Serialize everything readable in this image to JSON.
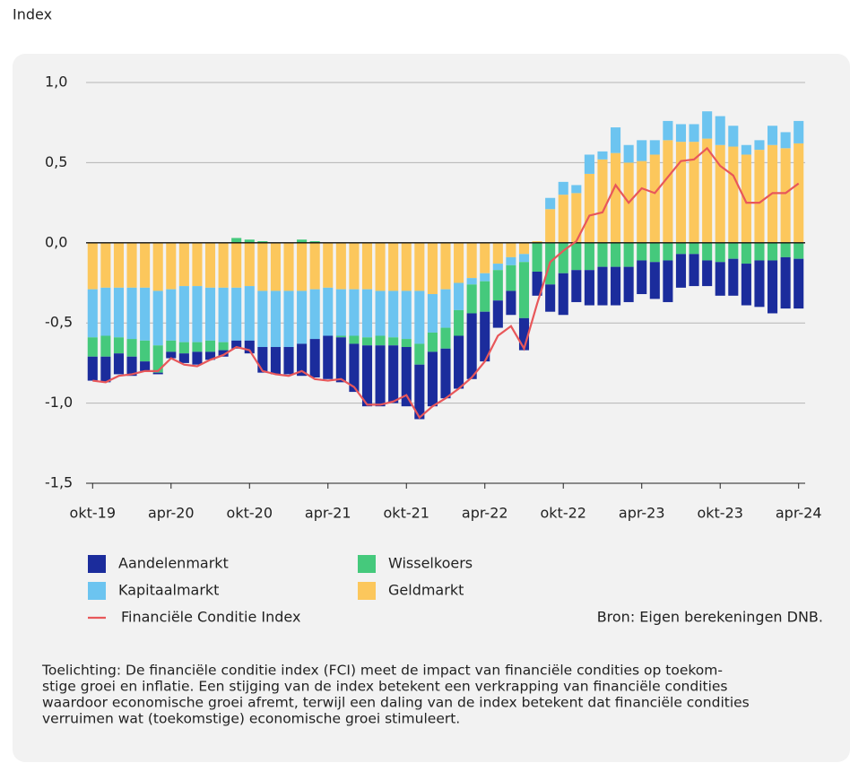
{
  "chart_data": {
    "type": "bar",
    "y_label": "Index",
    "categories": [
      "okt-19",
      null,
      null,
      null,
      null,
      null,
      "apr-20",
      null,
      null,
      null,
      null,
      null,
      "okt-20",
      null,
      null,
      null,
      null,
      null,
      "apr-21",
      null,
      null,
      null,
      null,
      null,
      "okt-21",
      null,
      null,
      null,
      null,
      null,
      "apr-22",
      null,
      null,
      null,
      null,
      null,
      "okt-22",
      null,
      null,
      null,
      null,
      null,
      "apr-23",
      null,
      null,
      null,
      null,
      null,
      "okt-23",
      null,
      null,
      null,
      null,
      null,
      "apr-24"
    ],
    "series": [
      {
        "name": "Aandelenmarkt",
        "color": "#1b2c9c",
        "values": [
          -0.15,
          -0.16,
          -0.13,
          -0.12,
          -0.06,
          -0.01,
          -0.04,
          -0.06,
          -0.08,
          -0.05,
          -0.04,
          -0.05,
          -0.08,
          -0.16,
          -0.17,
          -0.17,
          -0.2,
          -0.24,
          -0.27,
          -0.28,
          -0.3,
          -0.38,
          -0.38,
          -0.36,
          -0.37,
          -0.34,
          -0.34,
          -0.31,
          -0.33,
          -0.41,
          -0.31,
          -0.17,
          -0.15,
          -0.2,
          -0.15,
          -0.17,
          -0.26,
          -0.2,
          -0.22,
          -0.24,
          -0.24,
          -0.22,
          -0.21,
          -0.23,
          -0.26,
          -0.21,
          -0.2,
          -0.16,
          -0.21,
          -0.23,
          -0.26,
          -0.29,
          -0.33,
          -0.32,
          -0.31
        ]
      },
      {
        "name": "Wisselkoers",
        "color": "#45c97c",
        "values": [
          -0.12,
          -0.13,
          -0.1,
          -0.11,
          -0.13,
          -0.17,
          -0.07,
          -0.07,
          -0.06,
          -0.07,
          -0.05,
          0.03,
          0.02,
          0.01,
          0.0,
          0.0,
          0.02,
          0.01,
          0.0,
          -0.01,
          -0.05,
          -0.05,
          -0.06,
          -0.05,
          -0.05,
          -0.13,
          -0.12,
          -0.13,
          -0.16,
          -0.18,
          -0.19,
          -0.19,
          -0.16,
          -0.35,
          -0.18,
          -0.26,
          -0.19,
          -0.17,
          -0.17,
          -0.15,
          -0.15,
          -0.15,
          -0.11,
          -0.12,
          -0.11,
          -0.07,
          -0.07,
          -0.11,
          -0.12,
          -0.1,
          -0.13,
          -0.11,
          -0.11,
          -0.09,
          -0.1
        ]
      },
      {
        "name": "Kapitaalmarkt",
        "color": "#6cc4f0",
        "values": [
          -0.3,
          -0.3,
          -0.31,
          -0.32,
          -0.33,
          -0.34,
          -0.32,
          -0.35,
          -0.35,
          -0.33,
          -0.34,
          -0.33,
          -0.34,
          -0.35,
          -0.35,
          -0.35,
          -0.33,
          -0.31,
          -0.3,
          -0.29,
          -0.29,
          -0.3,
          -0.28,
          -0.29,
          -0.3,
          -0.33,
          -0.24,
          -0.24,
          -0.17,
          -0.04,
          -0.05,
          -0.04,
          -0.05,
          -0.05,
          0.0,
          0.07,
          0.08,
          0.05,
          0.12,
          0.05,
          0.16,
          0.11,
          0.13,
          0.09,
          0.12,
          0.11,
          0.11,
          0.17,
          0.18,
          0.13,
          0.06,
          0.06,
          0.12,
          0.1,
          0.14
        ]
      },
      {
        "name": "Geldmarkt",
        "color": "#fcc75c",
        "values": [
          -0.29,
          -0.28,
          -0.28,
          -0.28,
          -0.28,
          -0.3,
          -0.29,
          -0.27,
          -0.27,
          -0.28,
          -0.28,
          -0.28,
          -0.27,
          -0.3,
          -0.3,
          -0.3,
          -0.3,
          -0.29,
          -0.28,
          -0.29,
          -0.29,
          -0.29,
          -0.3,
          -0.3,
          -0.3,
          -0.3,
          -0.32,
          -0.29,
          -0.25,
          -0.22,
          -0.19,
          -0.13,
          -0.09,
          -0.07,
          0.01,
          0.21,
          0.3,
          0.31,
          0.43,
          0.52,
          0.56,
          0.5,
          0.51,
          0.55,
          0.64,
          0.63,
          0.63,
          0.65,
          0.61,
          0.6,
          0.55,
          0.58,
          0.61,
          0.59,
          0.62
        ]
      },
      {
        "name": "Financiële Conditie Index",
        "color": "#e8575a",
        "type": "line",
        "values": [
          -0.86,
          -0.87,
          -0.83,
          -0.82,
          -0.8,
          -0.8,
          -0.72,
          -0.76,
          -0.77,
          -0.73,
          -0.7,
          -0.65,
          -0.67,
          -0.8,
          -0.82,
          -0.83,
          -0.8,
          -0.85,
          -0.86,
          -0.85,
          -0.9,
          -1.01,
          -1.01,
          -0.99,
          -0.95,
          -1.09,
          -1.02,
          -0.97,
          -0.91,
          -0.84,
          -0.74,
          -0.58,
          -0.52,
          -0.66,
          -0.38,
          -0.12,
          -0.05,
          0.01,
          0.17,
          0.19,
          0.36,
          0.25,
          0.34,
          0.31,
          0.41,
          0.51,
          0.52,
          0.59,
          0.48,
          0.42,
          0.25,
          0.25,
          0.31,
          0.31,
          0.37
        ]
      }
    ],
    "ylim": [
      -1.5,
      1.0
    ],
    "yticks": [
      {
        "value": 1.0,
        "label": "1,0"
      },
      {
        "value": 0.5,
        "label": "0,5"
      },
      {
        "value": 0.0,
        "label": "0,0"
      },
      {
        "value": -0.5,
        "label": "-0,5"
      },
      {
        "value": -1.0,
        "label": "-1,0"
      },
      {
        "value": -1.5,
        "label": "-1,5"
      }
    ],
    "grid": true,
    "source": "Bron: Eigen berekeningen DNB.",
    "note": [
      "Toelichting: De financiële conditie index (FCI) meet de impact van financiële condities op toekom-",
      "stige groei en inflatie. Een stijging van de index betekent een verkrapping van financiële condities",
      "waardoor economische groei afremt, terwijl een daling van de index betekent dat financiële condities",
      "verruimen wat (toekomstige) economische groei stimuleert."
    ]
  }
}
